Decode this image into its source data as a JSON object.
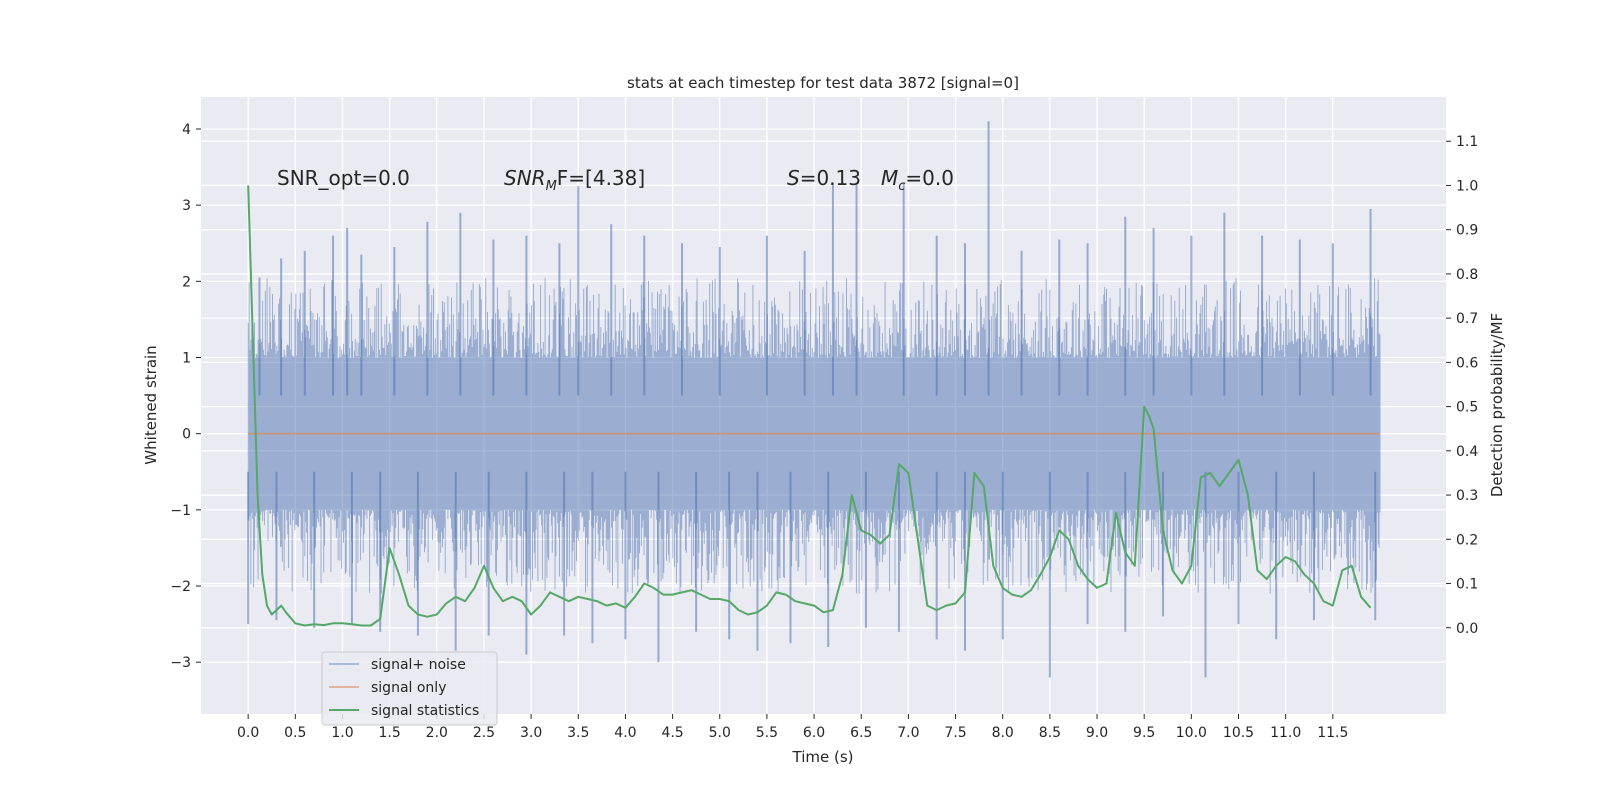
{
  "chart_data": {
    "type": "line",
    "title": "stats at each timestep for test data 3872 [signal=0]",
    "xlabel": "Time (s)",
    "ylabel": "Whitened strain",
    "y2label": "Detection probability/MF",
    "xlim": [
      -0.5,
      12.7
    ],
    "ylim": [
      -3.68,
      4.42
    ],
    "y2lim": [
      -0.195,
      1.2
    ],
    "grid": true,
    "background": "#eaeaf2",
    "x_ticks": [
      "0.0",
      "0.5",
      "1.0",
      "1.5",
      "2.0",
      "2.5",
      "3.0",
      "3.5",
      "4.0",
      "4.5",
      "5.0",
      "5.5",
      "6.0",
      "6.5",
      "7.0",
      "7.5",
      "8.0",
      "8.5",
      "9.0",
      "9.5",
      "10.0",
      "10.5",
      "11.0",
      "11.5"
    ],
    "y_ticks": [
      "4",
      "3",
      "2",
      "1",
      "0",
      "−1",
      "−2",
      "−3"
    ],
    "y2_ticks": [
      "1.1",
      "1.0",
      "0.9",
      "0.8",
      "0.7",
      "0.6",
      "0.5",
      "0.4",
      "0.3",
      "0.2",
      "0.1",
      "0.0"
    ],
    "annotations": {
      "snr_opt": "SNR_opt=0.0",
      "snr_mf_main": "SNR",
      "snr_mf_sub": "M",
      "snr_mf_rest": "F=[4.38]",
      "s_var": "S",
      "s_val": "=0.13",
      "mc_var": "M",
      "mc_sub": "c",
      "mc_val": "=0.0"
    },
    "legend": {
      "placement": "lower-left",
      "entries": [
        "signal+ noise",
        "signal only",
        "signal statistics"
      ]
    },
    "colors": {
      "noise": "#4c72b0",
      "signal": "#dd8452",
      "stats": "#55a868"
    },
    "series": [
      {
        "name": "signal+ noise",
        "axis": "left",
        "t_range": [
          0.0,
          12.0
        ],
        "core_band": [
          -1.35,
          1.55
        ],
        "spikes_up": [
          {
            "t": 0.12,
            "v": 2.05
          },
          {
            "t": 0.35,
            "v": 2.3
          },
          {
            "t": 0.6,
            "v": 2.4
          },
          {
            "t": 0.9,
            "v": 2.6
          },
          {
            "t": 1.05,
            "v": 2.7
          },
          {
            "t": 1.2,
            "v": 2.35
          },
          {
            "t": 1.55,
            "v": 2.45
          },
          {
            "t": 1.9,
            "v": 2.78
          },
          {
            "t": 2.25,
            "v": 2.9
          },
          {
            "t": 2.6,
            "v": 2.55
          },
          {
            "t": 2.95,
            "v": 2.6
          },
          {
            "t": 3.3,
            "v": 2.5
          },
          {
            "t": 3.5,
            "v": 3.25
          },
          {
            "t": 3.85,
            "v": 2.75
          },
          {
            "t": 4.2,
            "v": 2.6
          },
          {
            "t": 4.6,
            "v": 2.5
          },
          {
            "t": 5.0,
            "v": 2.45
          },
          {
            "t": 5.5,
            "v": 2.6
          },
          {
            "t": 5.9,
            "v": 2.4
          },
          {
            "t": 6.2,
            "v": 3.3
          },
          {
            "t": 6.45,
            "v": 3.3
          },
          {
            "t": 6.95,
            "v": 3.3
          },
          {
            "t": 7.3,
            "v": 2.6
          },
          {
            "t": 7.6,
            "v": 2.5
          },
          {
            "t": 7.85,
            "v": 4.1
          },
          {
            "t": 8.2,
            "v": 2.4
          },
          {
            "t": 8.6,
            "v": 2.55
          },
          {
            "t": 8.9,
            "v": 2.5
          },
          {
            "t": 9.3,
            "v": 2.85
          },
          {
            "t": 9.6,
            "v": 2.7
          },
          {
            "t": 10.0,
            "v": 2.6
          },
          {
            "t": 10.35,
            "v": 2.9
          },
          {
            "t": 10.75,
            "v": 2.6
          },
          {
            "t": 11.15,
            "v": 2.55
          },
          {
            "t": 11.5,
            "v": 2.5
          },
          {
            "t": 11.9,
            "v": 2.95
          }
        ],
        "spikes_down": [
          {
            "t": 0.0,
            "v": -2.5
          },
          {
            "t": 0.3,
            "v": -2.45
          },
          {
            "t": 0.7,
            "v": -2.55
          },
          {
            "t": 1.1,
            "v": -2.5
          },
          {
            "t": 1.4,
            "v": -2.6
          },
          {
            "t": 1.8,
            "v": -2.65
          },
          {
            "t": 2.2,
            "v": -2.85
          },
          {
            "t": 2.55,
            "v": -2.65
          },
          {
            "t": 2.95,
            "v": -2.9
          },
          {
            "t": 3.35,
            "v": -2.65
          },
          {
            "t": 3.65,
            "v": -2.75
          },
          {
            "t": 4.0,
            "v": -2.7
          },
          {
            "t": 4.35,
            "v": -3.0
          },
          {
            "t": 4.75,
            "v": -2.6
          },
          {
            "t": 5.1,
            "v": -2.7
          },
          {
            "t": 5.4,
            "v": -2.85
          },
          {
            "t": 5.75,
            "v": -2.75
          },
          {
            "t": 6.15,
            "v": -2.8
          },
          {
            "t": 6.55,
            "v": -2.55
          },
          {
            "t": 6.9,
            "v": -2.6
          },
          {
            "t": 7.3,
            "v": -2.7
          },
          {
            "t": 7.6,
            "v": -2.85
          },
          {
            "t": 8.0,
            "v": -2.7
          },
          {
            "t": 8.5,
            "v": -3.2
          },
          {
            "t": 8.9,
            "v": -2.5
          },
          {
            "t": 9.3,
            "v": -2.6
          },
          {
            "t": 9.7,
            "v": -2.4
          },
          {
            "t": 10.15,
            "v": -3.2
          },
          {
            "t": 10.5,
            "v": -2.5
          },
          {
            "t": 10.9,
            "v": -2.7
          },
          {
            "t": 11.3,
            "v": -2.45
          },
          {
            "t": 11.95,
            "v": -2.45
          }
        ]
      },
      {
        "name": "signal only",
        "axis": "left",
        "x": [
          0.0,
          12.0
        ],
        "y": [
          0.0,
          0.0
        ]
      },
      {
        "name": "signal statistics",
        "axis": "right",
        "x": [
          0.0,
          0.05,
          0.1,
          0.15,
          0.2,
          0.25,
          0.3,
          0.35,
          0.4,
          0.5,
          0.6,
          0.7,
          0.8,
          0.9,
          1.0,
          1.1,
          1.2,
          1.3,
          1.4,
          1.5,
          1.6,
          1.7,
          1.8,
          1.9,
          2.0,
          2.1,
          2.2,
          2.3,
          2.4,
          2.5,
          2.6,
          2.7,
          2.8,
          2.9,
          3.0,
          3.1,
          3.2,
          3.3,
          3.4,
          3.5,
          3.6,
          3.7,
          3.8,
          3.9,
          4.0,
          4.1,
          4.2,
          4.3,
          4.4,
          4.5,
          4.6,
          4.7,
          4.8,
          4.9,
          5.0,
          5.1,
          5.2,
          5.3,
          5.4,
          5.5,
          5.6,
          5.7,
          5.8,
          5.9,
          6.0,
          6.1,
          6.2,
          6.3,
          6.4,
          6.5,
          6.6,
          6.7,
          6.8,
          6.9,
          7.0,
          7.1,
          7.2,
          7.3,
          7.4,
          7.5,
          7.6,
          7.7,
          7.8,
          7.9,
          8.0,
          8.1,
          8.2,
          8.3,
          8.4,
          8.5,
          8.6,
          8.7,
          8.8,
          8.9,
          9.0,
          9.1,
          9.2,
          9.3,
          9.4,
          9.5,
          9.55,
          9.6,
          9.7,
          9.8,
          9.9,
          10.0,
          10.1,
          10.2,
          10.3,
          10.4,
          10.5,
          10.6,
          10.7,
          10.8,
          10.9,
          11.0,
          11.1,
          11.2,
          11.3,
          11.4,
          11.5,
          11.6,
          11.7,
          11.8,
          11.9
        ],
        "y": [
          1.0,
          0.65,
          0.3,
          0.12,
          0.05,
          0.03,
          0.04,
          0.05,
          0.035,
          0.01,
          0.005,
          0.008,
          0.006,
          0.01,
          0.01,
          0.008,
          0.005,
          0.005,
          0.02,
          0.18,
          0.12,
          0.05,
          0.03,
          0.025,
          0.03,
          0.055,
          0.07,
          0.06,
          0.09,
          0.14,
          0.09,
          0.06,
          0.07,
          0.06,
          0.03,
          0.05,
          0.08,
          0.07,
          0.06,
          0.07,
          0.065,
          0.06,
          0.05,
          0.055,
          0.045,
          0.07,
          0.1,
          0.09,
          0.075,
          0.075,
          0.08,
          0.085,
          0.075,
          0.065,
          0.065,
          0.06,
          0.04,
          0.03,
          0.035,
          0.05,
          0.08,
          0.075,
          0.06,
          0.055,
          0.05,
          0.035,
          0.04,
          0.12,
          0.3,
          0.22,
          0.21,
          0.19,
          0.21,
          0.37,
          0.35,
          0.2,
          0.05,
          0.04,
          0.05,
          0.055,
          0.08,
          0.35,
          0.32,
          0.14,
          0.09,
          0.075,
          0.07,
          0.085,
          0.12,
          0.16,
          0.22,
          0.2,
          0.14,
          0.11,
          0.09,
          0.1,
          0.26,
          0.17,
          0.14,
          0.5,
          0.48,
          0.45,
          0.22,
          0.13,
          0.1,
          0.14,
          0.34,
          0.35,
          0.32,
          0.35,
          0.38,
          0.3,
          0.13,
          0.11,
          0.14,
          0.16,
          0.15,
          0.12,
          0.1,
          0.06,
          0.05,
          0.13,
          0.14,
          0.07,
          0.045
        ]
      }
    ]
  }
}
